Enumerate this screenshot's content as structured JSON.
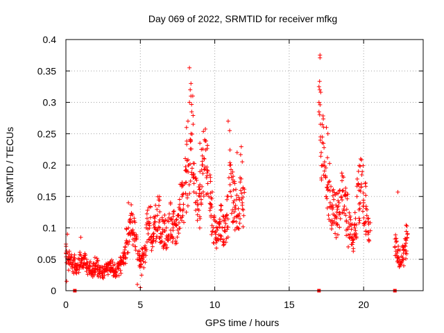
{
  "chart_data": {
    "type": "scatter",
    "title": "Day 069 of 2022, SRMTID for receiver mfkg",
    "xlabel": "GPS time / hours",
    "ylabel": "SRMTID / TECUs",
    "xlim": [
      0,
      24
    ],
    "ylim": [
      0,
      0.4
    ],
    "x_ticks": [
      0,
      5,
      10,
      15,
      20
    ],
    "x_tick_labels": [
      "0",
      "5",
      "10",
      "15",
      "20"
    ],
    "y_ticks": [
      0,
      0.05,
      0.1,
      0.15,
      0.2,
      0.25,
      0.3,
      0.35,
      0.4
    ],
    "y_tick_labels": [
      "0",
      "0.05",
      "0.1",
      "0.15",
      "0.2",
      "0.25",
      "0.3",
      "0.35",
      "0.4"
    ],
    "grid": true,
    "marker": "+",
    "color": "#ff0000",
    "series": [
      {
        "name": "SRMTID",
        "x": [
          0.0,
          0.15,
          0.3,
          0.45,
          0.6,
          0.75,
          0.9,
          1.05,
          1.2,
          1.35,
          1.5,
          1.65,
          1.8,
          1.95,
          2.1,
          2.25,
          2.4,
          2.55,
          2.7,
          2.85,
          3.0,
          3.15,
          3.3,
          3.45,
          3.6,
          3.75,
          3.9,
          4.05,
          4.2,
          4.35,
          4.5,
          4.65,
          4.8,
          4.95,
          5.1,
          5.25,
          5.4,
          5.55,
          5.7,
          5.85,
          6.0,
          6.15,
          6.3,
          6.45,
          6.6,
          6.75,
          6.9,
          7.05,
          7.2,
          7.35,
          7.5,
          7.65,
          7.8,
          7.95,
          8.1,
          8.25,
          8.4,
          8.55,
          8.7,
          8.85,
          9.0,
          9.15,
          9.3,
          9.45,
          9.6,
          9.75,
          9.9,
          10.05,
          10.2,
          10.35,
          10.5,
          10.65,
          10.8,
          10.95,
          11.1,
          11.25,
          11.4,
          11.55,
          11.7,
          11.85,
          17.0,
          17.15,
          17.3,
          17.45,
          17.6,
          17.75,
          17.9,
          18.05,
          18.2,
          18.35,
          18.5,
          18.65,
          18.8,
          18.95,
          19.1,
          19.25,
          19.4,
          19.55,
          19.7,
          19.85,
          20.0,
          20.15,
          20.3,
          22.1,
          22.25,
          22.4,
          22.55,
          22.7,
          22.85
        ],
        "y": [
          0.06,
          0.05,
          0.045,
          0.042,
          0.038,
          0.04,
          0.05,
          0.045,
          0.052,
          0.04,
          0.035,
          0.03,
          0.033,
          0.04,
          0.035,
          0.03,
          0.028,
          0.032,
          0.038,
          0.04,
          0.035,
          0.033,
          0.03,
          0.036,
          0.042,
          0.048,
          0.06,
          0.075,
          0.1,
          0.12,
          0.09,
          0.07,
          0.05,
          0.04,
          0.055,
          0.06,
          0.1,
          0.11,
          0.085,
          0.09,
          0.11,
          0.12,
          0.1,
          0.09,
          0.095,
          0.1,
          0.11,
          0.09,
          0.1,
          0.105,
          0.12,
          0.13,
          0.15,
          0.17,
          0.19,
          0.2,
          0.25,
          0.18,
          0.14,
          0.13,
          0.15,
          0.2,
          0.21,
          0.18,
          0.15,
          0.12,
          0.1,
          0.09,
          0.1,
          0.11,
          0.1,
          0.095,
          0.12,
          0.18,
          0.15,
          0.14,
          0.13,
          0.12,
          0.18,
          0.14,
          0.3,
          0.22,
          0.2,
          0.18,
          0.16,
          0.14,
          0.13,
          0.12,
          0.125,
          0.14,
          0.15,
          0.13,
          0.12,
          0.1,
          0.09,
          0.08,
          0.1,
          0.15,
          0.16,
          0.17,
          0.14,
          0.11,
          0.09,
          0.07,
          0.06,
          0.05,
          0.055,
          0.065,
          0.08
        ]
      }
    ],
    "outlier_points": [
      {
        "x": 8.3,
        "y": 0.355
      },
      {
        "x": 8.4,
        "y": 0.33
      },
      {
        "x": 8.35,
        "y": 0.32
      },
      {
        "x": 8.4,
        "y": 0.31
      },
      {
        "x": 8.3,
        "y": 0.3
      },
      {
        "x": 8.45,
        "y": 0.285
      },
      {
        "x": 8.2,
        "y": 0.27
      },
      {
        "x": 8.1,
        "y": 0.26
      },
      {
        "x": 9.0,
        "y": 0.235
      },
      {
        "x": 9.1,
        "y": 0.225
      },
      {
        "x": 10.9,
        "y": 0.27
      },
      {
        "x": 11.0,
        "y": 0.255
      },
      {
        "x": 11.5,
        "y": 0.22
      },
      {
        "x": 17.0,
        "y": 0.325
      },
      {
        "x": 17.05,
        "y": 0.32
      },
      {
        "x": 17.0,
        "y": 0.285
      },
      {
        "x": 17.1,
        "y": 0.265
      },
      {
        "x": 17.5,
        "y": 0.26
      },
      {
        "x": 17.6,
        "y": 0.25
      },
      {
        "x": 19.8,
        "y": 0.21
      },
      {
        "x": 22.3,
        "y": 0.157
      },
      {
        "x": 4.2,
        "y": 0.14
      },
      {
        "x": 0.1,
        "y": 0.09
      },
      {
        "x": 4.8,
        "y": 0.01
      },
      {
        "x": 5.0,
        "y": 0.005
      },
      {
        "x": 0.05,
        "y": 0.015
      },
      {
        "x": 1.0,
        "y": 0.085
      }
    ],
    "axis_markers": [
      0.6,
      17.0,
      22.1
    ]
  }
}
